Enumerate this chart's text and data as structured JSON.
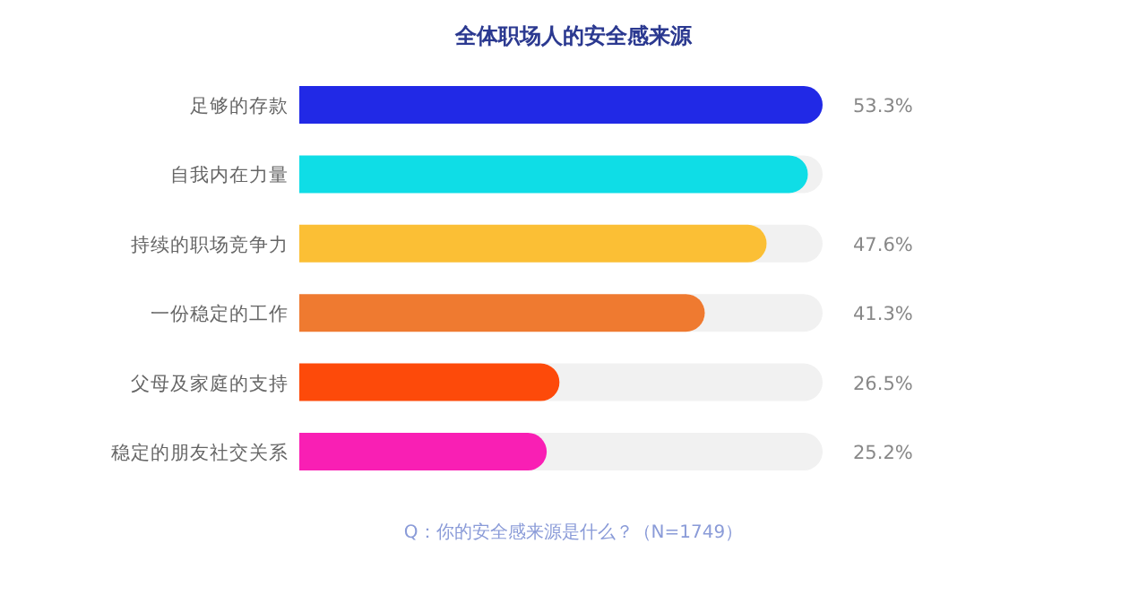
{
  "chart_data": {
    "type": "bar",
    "orientation": "horizontal",
    "title": "全体职场人的安全感来源",
    "categories": [
      "足够的存款",
      "自我内在力量",
      "持续的职场竞争力",
      "一份稳定的工作",
      "父母及家庭的支持",
      "稳定的朋友社交关系"
    ],
    "values": [
      53.3,
      51.8,
      47.6,
      41.3,
      26.5,
      25.2
    ],
    "value_labels": [
      "53.3%",
      null,
      "47.6%",
      "41.3%",
      "26.5%",
      "25.2%"
    ],
    "colors": [
      "#2129e6",
      "#0fdde6",
      "#fbbf35",
      "#ef7a30",
      "#fd4a0a",
      "#f91fb4"
    ],
    "xlim": [
      0,
      53.3
    ],
    "annotations": [
      "Q：你的安全感来源是什么？（N=1749）"
    ]
  }
}
